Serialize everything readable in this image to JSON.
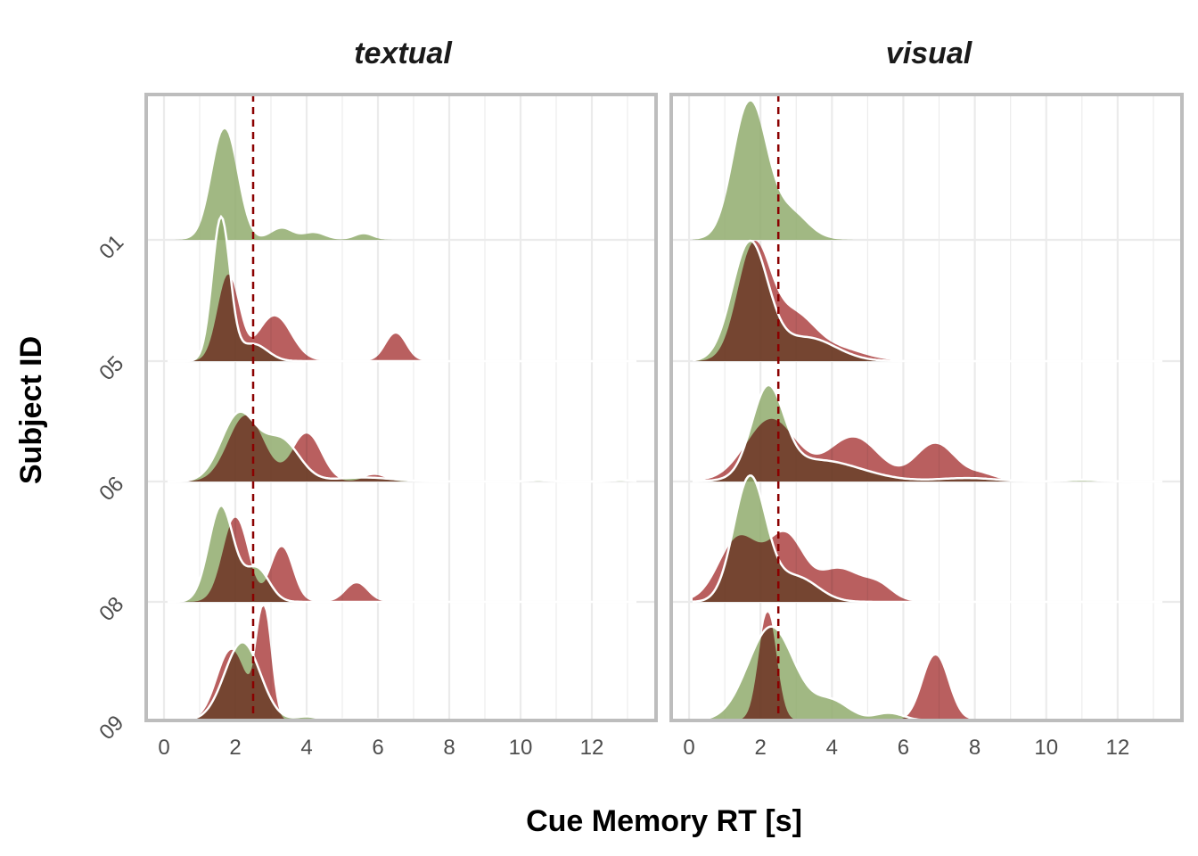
{
  "chart_data": {
    "type": "area",
    "subtype": "ridgeline-density",
    "xlabel": "Cue Memory RT [s]",
    "ylabel": "Subject ID",
    "xlim": [
      -0.5,
      13.8
    ],
    "x_ticks": [
      0,
      2,
      4,
      6,
      8,
      10,
      12
    ],
    "subjects": [
      "01",
      "05",
      "06",
      "08",
      "09"
    ],
    "facets": [
      "textual",
      "visual"
    ],
    "reference_line": {
      "x": 2.5,
      "style": "dashed",
      "color": "#8b0000"
    },
    "colors": {
      "green": "#8ca868",
      "red": "#aa3c3c",
      "overlap": "#7d5f3a",
      "grid": "#ebebeb",
      "frame": "#bdbdbd"
    },
    "grid": true,
    "series": [
      {
        "panel": "textual",
        "subject": "01",
        "color": "green",
        "peak_height": 0.92,
        "components": [
          [
            1.7,
            0.35,
            1.0
          ],
          [
            3.3,
            0.3,
            0.1
          ],
          [
            4.2,
            0.3,
            0.06
          ],
          [
            5.6,
            0.25,
            0.05
          ]
        ]
      },
      {
        "panel": "textual",
        "subject": "05",
        "color": "green",
        "peak_height": 1.2,
        "components": [
          [
            1.6,
            0.25,
            1.0
          ],
          [
            2.5,
            0.4,
            0.12
          ]
        ]
      },
      {
        "panel": "textual",
        "subject": "05",
        "color": "red",
        "peak_height": 0.72,
        "components": [
          [
            1.8,
            0.3,
            1.0
          ],
          [
            3.1,
            0.45,
            0.52
          ],
          [
            6.5,
            0.28,
            0.32
          ]
        ]
      },
      {
        "panel": "textual",
        "subject": "06",
        "color": "green",
        "peak_height": 0.58,
        "components": [
          [
            2.1,
            0.5,
            1.0
          ],
          [
            3.3,
            0.5,
            0.6
          ],
          [
            5.6,
            0.8,
            0.06
          ],
          [
            10.5,
            0.3,
            0.02
          ],
          [
            12.8,
            0.3,
            0.02
          ]
        ]
      },
      {
        "panel": "textual",
        "subject": "06",
        "color": "red",
        "peak_height": 0.55,
        "components": [
          [
            2.3,
            0.5,
            1.0
          ],
          [
            4.0,
            0.4,
            0.72
          ],
          [
            5.9,
            0.3,
            0.1
          ]
        ]
      },
      {
        "panel": "textual",
        "subject": "08",
        "color": "green",
        "peak_height": 0.8,
        "components": [
          [
            1.6,
            0.35,
            1.0
          ],
          [
            2.6,
            0.35,
            0.35
          ]
        ]
      },
      {
        "panel": "textual",
        "subject": "08",
        "color": "red",
        "peak_height": 0.7,
        "components": [
          [
            2.0,
            0.35,
            1.0
          ],
          [
            3.3,
            0.3,
            0.65
          ],
          [
            5.4,
            0.3,
            0.22
          ]
        ]
      },
      {
        "panel": "textual",
        "subject": "09",
        "color": "green",
        "peak_height": 0.65,
        "components": [
          [
            2.2,
            0.5,
            1.0
          ],
          [
            4.0,
            0.3,
            0.05
          ],
          [
            5.5,
            0.5,
            0.03
          ]
        ]
      },
      {
        "panel": "textual",
        "subject": "09",
        "color": "red",
        "peak_height": 0.95,
        "components": [
          [
            1.9,
            0.4,
            0.65
          ],
          [
            2.8,
            0.2,
            1.0
          ]
        ]
      },
      {
        "panel": "visual",
        "subject": "01",
        "color": "green",
        "peak_height": 1.15,
        "components": [
          [
            1.7,
            0.45,
            1.0
          ],
          [
            2.8,
            0.5,
            0.2
          ]
        ]
      },
      {
        "panel": "visual",
        "subject": "05",
        "color": "green",
        "peak_height": 1.0,
        "components": [
          [
            1.7,
            0.5,
            1.0
          ],
          [
            3.3,
            0.8,
            0.2
          ]
        ]
      },
      {
        "panel": "visual",
        "subject": "05",
        "color": "red",
        "peak_height": 1.0,
        "components": [
          [
            1.8,
            0.45,
            1.0
          ],
          [
            2.9,
            0.6,
            0.4
          ],
          [
            4.2,
            0.7,
            0.1
          ]
        ]
      },
      {
        "panel": "visual",
        "subject": "06",
        "color": "green",
        "peak_height": 0.8,
        "components": [
          [
            2.2,
            0.45,
            1.0
          ],
          [
            3.6,
            1.2,
            0.25
          ],
          [
            7.8,
            0.8,
            0.04
          ],
          [
            11.0,
            0.5,
            0.02
          ]
        ]
      },
      {
        "panel": "visual",
        "subject": "06",
        "color": "red",
        "peak_height": 0.52,
        "components": [
          [
            2.3,
            0.7,
            1.0
          ],
          [
            4.6,
            0.7,
            0.7
          ],
          [
            6.9,
            0.55,
            0.6
          ],
          [
            8.2,
            0.4,
            0.1
          ]
        ]
      },
      {
        "panel": "visual",
        "subject": "08",
        "color": "green",
        "peak_height": 1.05,
        "components": [
          [
            1.7,
            0.45,
            1.0
          ],
          [
            3.0,
            0.6,
            0.2
          ]
        ]
      },
      {
        "panel": "visual",
        "subject": "08",
        "color": "red",
        "peak_height": 0.58,
        "components": [
          [
            1.4,
            0.55,
            1.0
          ],
          [
            2.7,
            0.5,
            1.0
          ],
          [
            4.2,
            0.6,
            0.5
          ],
          [
            5.3,
            0.4,
            0.22
          ]
        ]
      },
      {
        "panel": "visual",
        "subject": "09",
        "color": "green",
        "peak_height": 0.78,
        "components": [
          [
            2.3,
            0.65,
            1.0
          ],
          [
            4.0,
            0.5,
            0.2
          ],
          [
            5.6,
            0.4,
            0.08
          ]
        ]
      },
      {
        "panel": "visual",
        "subject": "09",
        "color": "red",
        "peak_height": 0.9,
        "components": [
          [
            2.2,
            0.25,
            1.0
          ],
          [
            6.9,
            0.35,
            0.6
          ]
        ]
      }
    ]
  }
}
